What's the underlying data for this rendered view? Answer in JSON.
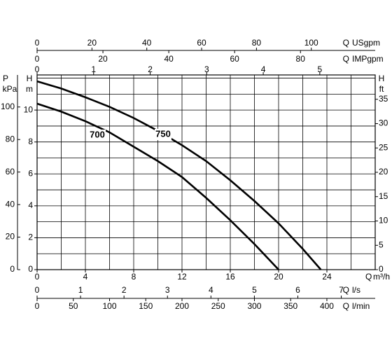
{
  "chart_data": {
    "type": "line",
    "x_name": "Q",
    "x_unit": "m³/h",
    "y_name": "H",
    "y_unit": "m",
    "xlim": [
      0,
      28
    ],
    "ylim": [
      0,
      12.2
    ],
    "xticks": [
      0,
      4,
      8,
      12,
      16,
      20,
      24
    ],
    "yticks": [
      0,
      2,
      4,
      6,
      8,
      10
    ],
    "x_grid": [
      2,
      4,
      6,
      8,
      10,
      12,
      14,
      16,
      18,
      20,
      22,
      24,
      26
    ],
    "y_grid": [
      1,
      2,
      3,
      4,
      5,
      6,
      7,
      8,
      9,
      10,
      11,
      12
    ],
    "series": [
      {
        "name": "700",
        "color": "#000000",
        "x": [
          0,
          2,
          4,
          6,
          8,
          10,
          12,
          14,
          16,
          18,
          20
        ],
        "values": [
          10.4,
          9.9,
          9.3,
          8.6,
          7.7,
          6.8,
          5.8,
          4.5,
          3.1,
          1.6,
          0
        ]
      },
      {
        "name": "750",
        "color": "#000000",
        "x": [
          0,
          2,
          4,
          6,
          8,
          10,
          12,
          14,
          16,
          18,
          20,
          22,
          23.5
        ],
        "values": [
          11.8,
          11.35,
          10.8,
          10.2,
          9.5,
          8.7,
          7.8,
          6.8,
          5.6,
          4.3,
          2.9,
          1.3,
          0
        ]
      }
    ],
    "x_axes": [
      {
        "name": "Q",
        "unit": "USgpm",
        "lim": [
          0,
          123.3
        ],
        "ticks": [
          0,
          20,
          40,
          60,
          80,
          100
        ]
      },
      {
        "name": "Q",
        "unit": "IMPgpm",
        "lim": [
          0,
          102.7
        ],
        "ticks": [
          0,
          20,
          40,
          60,
          80
        ]
      },
      {
        "lim": [
          0,
          5.98
        ],
        "ticks": [
          0,
          1,
          2,
          3,
          4,
          5
        ]
      },
      {
        "name": "Q",
        "unit": "l/s",
        "lim": [
          0,
          7.78
        ],
        "ticks": [
          0,
          1,
          2,
          3,
          4,
          5,
          6,
          7
        ]
      },
      {
        "name": "Q",
        "unit": "l/min",
        "lim": [
          0,
          466.7
        ],
        "ticks": [
          0,
          50,
          100,
          150,
          200,
          250,
          300,
          350,
          400
        ]
      }
    ],
    "y_axes": [
      {
        "name": "P",
        "unit": "kPa",
        "lim": [
          0,
          119.7
        ],
        "ticks": [
          0,
          20,
          40,
          60,
          80,
          100
        ]
      },
      {
        "name": "H",
        "unit": "ft",
        "lim": [
          0,
          40
        ],
        "ticks": [
          0,
          5,
          10,
          15,
          20,
          25,
          30,
          35
        ]
      }
    ]
  }
}
